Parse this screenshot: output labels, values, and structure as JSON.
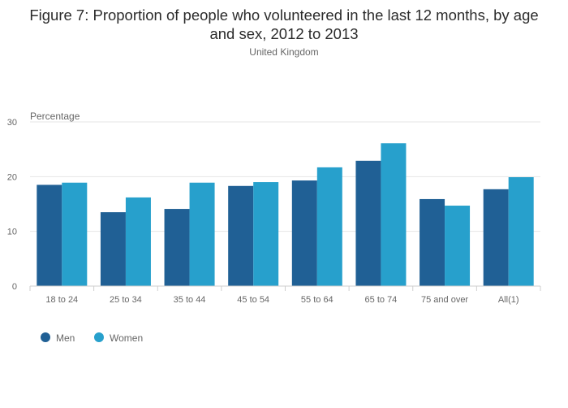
{
  "chart_data": {
    "type": "bar",
    "title": "Figure 7: Proportion of people who volunteered in the last 12 months, by age and sex, 2012 to 2013",
    "subtitle": "United Kingdom",
    "ylabel": "Percentage",
    "xlabel": "",
    "ylim": [
      0,
      30
    ],
    "yticks": [
      0,
      10,
      20,
      30
    ],
    "grid": true,
    "legend_position": "bottom-left",
    "categories": [
      "18 to 24",
      "25 to 34",
      "35 to 44",
      "45 to 54",
      "55 to 64",
      "65 to 74",
      "75 and over",
      "All(1)"
    ],
    "series": [
      {
        "name": "Men",
        "color": "#206095",
        "values": [
          18.5,
          13.5,
          14.1,
          18.3,
          19.3,
          22.9,
          15.9,
          17.7
        ]
      },
      {
        "name": "Women",
        "color": "#27a0cc",
        "values": [
          18.9,
          16.2,
          18.9,
          19.0,
          21.7,
          26.1,
          14.7,
          19.9
        ]
      }
    ]
  }
}
